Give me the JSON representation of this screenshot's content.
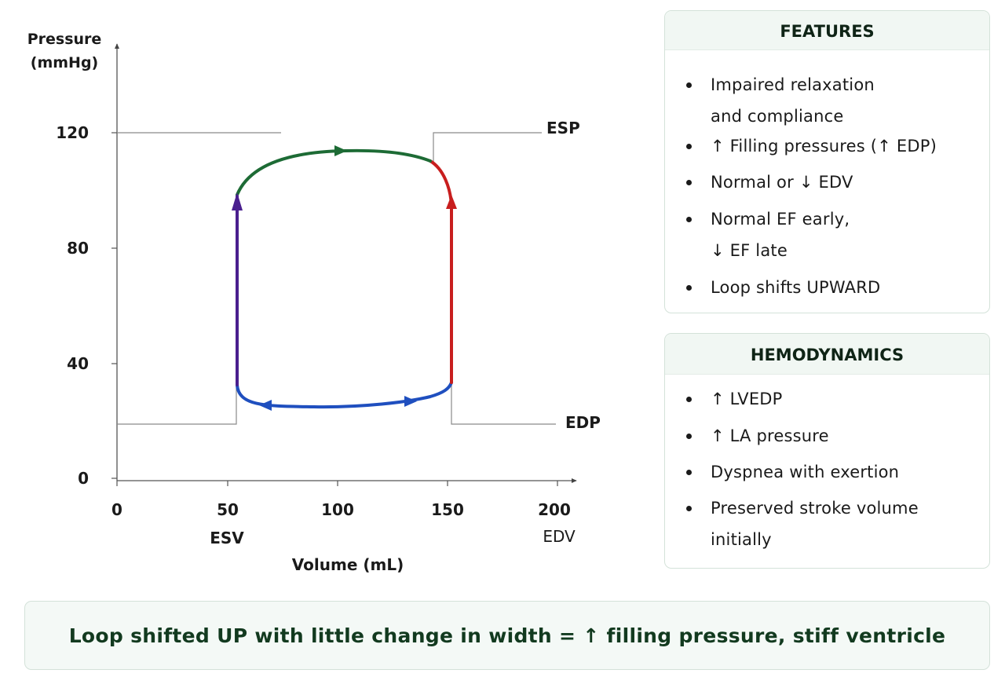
{
  "diagram": {
    "y_axis_label_line1": "Pressure",
    "y_axis_label_line2": "(mmHg)",
    "x_axis_label": "Volume (mL)",
    "y_ticks": [
      "0",
      "40",
      "80",
      "120"
    ],
    "x_ticks": [
      "0",
      "50",
      "100",
      "150",
      "200"
    ],
    "labels": {
      "esp": "ESP",
      "edp": "EDP",
      "esv": "ESV",
      "edv": "EDV"
    },
    "colors": {
      "filling": "#1f4fbf",
      "isovolumetric_contraction": "#c81e1e",
      "ejection_start": "#c81e1e",
      "ejection": "#1d6b35",
      "isovolumetric_relaxation": "#4a1f8f",
      "reference_lines": "#888888",
      "axis": "#444444"
    }
  },
  "features": {
    "title": "FEATURES",
    "items": [
      {
        "line1": "Impaired relaxation",
        "line2": "and compliance"
      },
      {
        "line1": "↑ Filling pressures (↑ EDP)"
      },
      {
        "line1": "Normal or ↓ EDV"
      },
      {
        "line1": "Normal EF early,",
        "line2": "↓ EF late"
      },
      {
        "line1": "Loop shifts UPWARD"
      }
    ]
  },
  "hemodynamics": {
    "title": "HEMODYNAMICS",
    "items": [
      {
        "line1": "↑ LVEDP"
      },
      {
        "line1": "↑ LA pressure"
      },
      {
        "line1": "Dyspnea with exertion"
      },
      {
        "line1": "Preserved stroke volume",
        "line2": "initially"
      }
    ]
  },
  "summary": "Loop shifted UP with little change in width = ↑ filling pressure, stiff ventricle"
}
